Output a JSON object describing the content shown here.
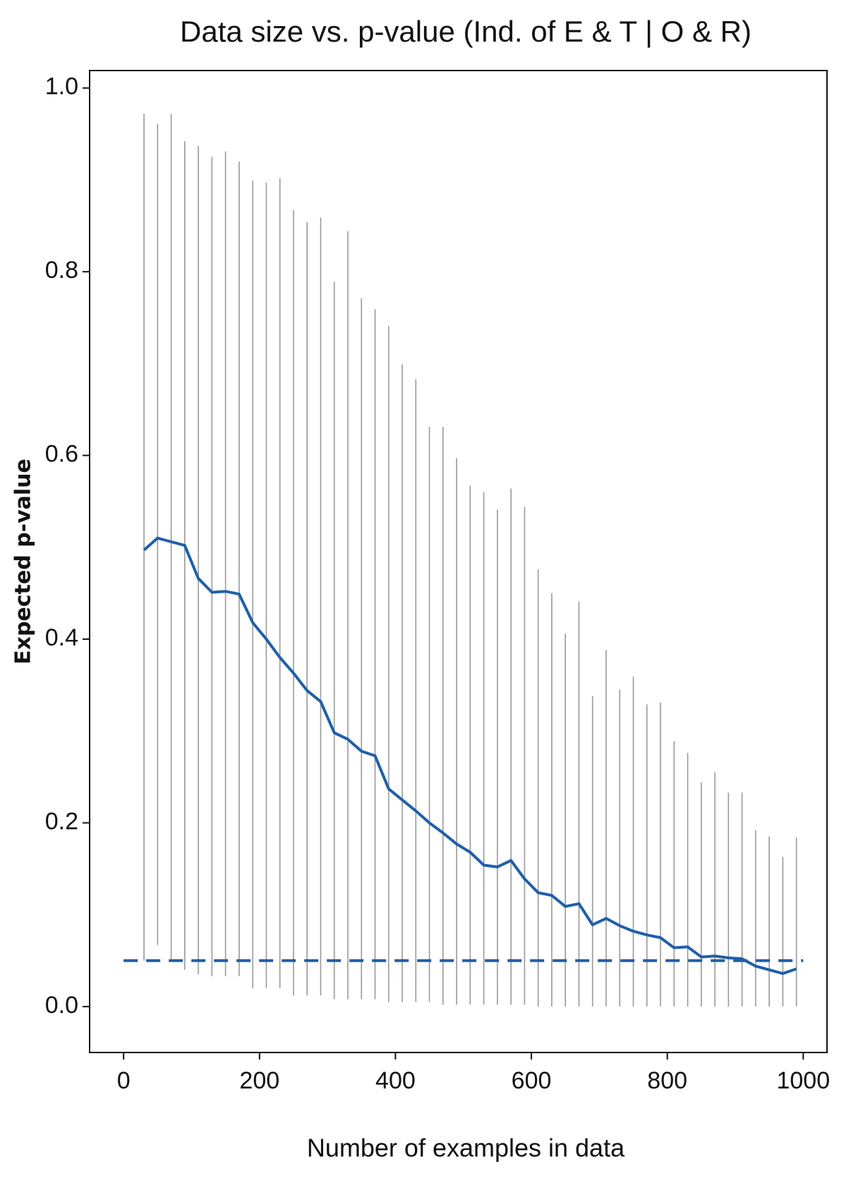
{
  "chart_data": {
    "type": "line",
    "title": "Data size vs. p-value (Ind. of E & T | O & R)",
    "x_label": "Number of examples in data",
    "y_label": "Expected p-value",
    "x": [
      30,
      50,
      70,
      90,
      110,
      130,
      150,
      170,
      190,
      210,
      230,
      250,
      270,
      290,
      310,
      330,
      350,
      370,
      390,
      410,
      430,
      450,
      470,
      490,
      510,
      530,
      550,
      570,
      590,
      610,
      630,
      650,
      670,
      690,
      710,
      730,
      750,
      770,
      790,
      810,
      830,
      850,
      870,
      890,
      910,
      930,
      950,
      970,
      990
    ],
    "series": [
      {
        "color": "#1f5fa8",
        "values": [
          0.497,
          0.51,
          0.506,
          0.502,
          0.466,
          0.451,
          0.452,
          0.449,
          0.418,
          0.4,
          0.38,
          0.363,
          0.344,
          0.332,
          0.298,
          0.291,
          0.278,
          0.273,
          0.237,
          0.225,
          0.213,
          0.2,
          0.189,
          0.177,
          0.168,
          0.154,
          0.152,
          0.159,
          0.139,
          0.124,
          0.121,
          0.109,
          0.112,
          0.089,
          0.096,
          0.088,
          0.082,
          0.078,
          0.075,
          0.064,
          0.065,
          0.054,
          0.055,
          0.053,
          0.052,
          0.044,
          0.04,
          0.036,
          0.041
        ],
        "lower": [
          0.05,
          0.067,
          0.05,
          0.04,
          0.035,
          0.033,
          0.033,
          0.033,
          0.02,
          0.02,
          0.02,
          0.012,
          0.012,
          0.012,
          0.008,
          0.008,
          0.008,
          0.008,
          0.005,
          0.005,
          0.005,
          0.005,
          0.002,
          0.002,
          0.002,
          0.002,
          0.002,
          0.002,
          0.002,
          0,
          0,
          0,
          0,
          0,
          0,
          0,
          0,
          0,
          0,
          0,
          0,
          0,
          0,
          0,
          0,
          0,
          0,
          0,
          0
        ],
        "upper": [
          0.972,
          0.961,
          0.972,
          0.942,
          0.937,
          0.925,
          0.931,
          0.92,
          0.899,
          0.897,
          0.902,
          0.867,
          0.854,
          0.859,
          0.789,
          0.844,
          0.771,
          0.759,
          0.741,
          0.699,
          0.683,
          0.631,
          0.631,
          0.597,
          0.567,
          0.56,
          0.541,
          0.564,
          0.544,
          0.476,
          0.45,
          0.406,
          0.441,
          0.338,
          0.388,
          0.345,
          0.359,
          0.329,
          0.331,
          0.289,
          0.276,
          0.244,
          0.255,
          0.233,
          0.233,
          0.192,
          0.185,
          0.163,
          0.184
        ],
        "error_color": "#999999"
      }
    ],
    "reference_line": {
      "y": 0.05,
      "x": [
        0,
        1000
      ],
      "color": "#1f5fa8",
      "style": "dashed"
    },
    "xlim": [
      -50,
      1035
    ],
    "ylim": [
      -0.05,
      1.019
    ],
    "xticks": [
      0,
      200,
      400,
      600,
      800,
      1000
    ],
    "yticks": [
      {
        "value": 0,
        "label": "0.0"
      },
      0.2,
      0.4,
      0.6,
      0.8,
      {
        "value": 1,
        "label": "1.0"
      }
    ],
    "grid": false
  }
}
